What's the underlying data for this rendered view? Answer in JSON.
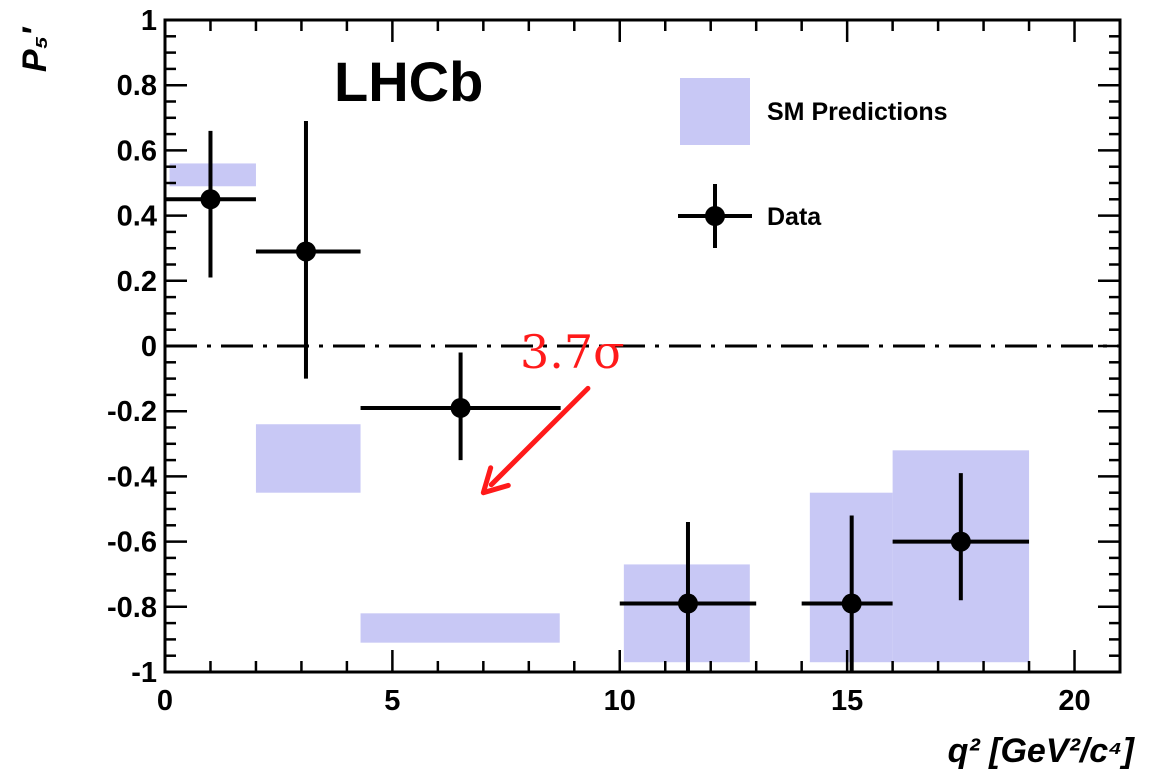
{
  "chart_data": {
    "type": "scatter",
    "title": "",
    "experiment_label": "LHCb",
    "xlabel": "q² [GeV²/c⁴]",
    "ylabel": "P₅′",
    "xlim": [
      0,
      21
    ],
    "ylim": [
      -1,
      1
    ],
    "x_ticks": [
      0,
      5,
      10,
      15,
      20
    ],
    "y_ticks": [
      -1,
      -0.8,
      -0.6,
      -0.4,
      -0.2,
      0,
      0.2,
      0.4,
      0.6,
      0.8,
      1
    ],
    "x_tick_labels": [
      "0",
      "5",
      "10",
      "15",
      "20"
    ],
    "y_tick_labels": [
      "-1",
      "-0.8",
      "-0.6",
      "-0.4",
      "-0.2",
      "0",
      "0.2",
      "0.4",
      "0.6",
      "0.8",
      "1"
    ],
    "series": [
      {
        "name": "Data",
        "points": [
          {
            "x": 1.0,
            "y": 0.45,
            "xerr_lo": 1.0,
            "xerr_hi": 1.0,
            "yerr_lo": 0.24,
            "yerr_hi": 0.21
          },
          {
            "x": 3.1,
            "y": 0.29,
            "xerr_lo": 1.1,
            "xerr_hi": 1.2,
            "yerr_lo": 0.39,
            "yerr_hi": 0.4
          },
          {
            "x": 6.5,
            "y": -0.19,
            "xerr_lo": 2.2,
            "xerr_hi": 2.2,
            "yerr_lo": 0.16,
            "yerr_hi": 0.17
          },
          {
            "x": 11.5,
            "y": -0.79,
            "xerr_lo": 1.5,
            "xerr_hi": 1.5,
            "yerr_lo": 0.21,
            "yerr_hi": 0.25
          },
          {
            "x": 15.1,
            "y": -0.79,
            "xerr_lo": 1.1,
            "xerr_hi": 0.9,
            "yerr_lo": 0.21,
            "yerr_hi": 0.27
          },
          {
            "x": 17.5,
            "y": -0.6,
            "xerr_lo": 1.5,
            "xerr_hi": 1.5,
            "yerr_lo": 0.18,
            "yerr_hi": 0.21
          }
        ]
      },
      {
        "name": "SM Predictions",
        "bands": [
          {
            "x0": 0.1,
            "x1": 2.0,
            "y0": 0.49,
            "y1": 0.56
          },
          {
            "x0": 2.0,
            "x1": 4.3,
            "y0": -0.45,
            "y1": -0.24
          },
          {
            "x0": 4.3,
            "x1": 8.68,
            "y0": -0.91,
            "y1": -0.82
          },
          {
            "x0": 10.09,
            "x1": 12.86,
            "y0": -0.97,
            "y1": -0.67
          },
          {
            "x0": 14.18,
            "x1": 16.0,
            "y0": -0.97,
            "y1": -0.45
          },
          {
            "x0": 16.0,
            "x1": 19.0,
            "y0": -0.97,
            "y1": -0.32
          }
        ]
      }
    ],
    "reference_line": {
      "y": 0,
      "style": "dash-dot"
    },
    "annotation": {
      "text": "3.7σ",
      "color": "#ff1a1a",
      "arrow_tail": [
        9.3,
        -0.13
      ],
      "arrow_head": [
        7.0,
        -0.45
      ]
    },
    "legend": [
      {
        "label": "SM Predictions",
        "kind": "band"
      },
      {
        "label": "Data",
        "kind": "marker"
      }
    ],
    "legend_position": "top-right",
    "colors": {
      "band": "#c8c8f5",
      "marker": "#000000",
      "annotation": "#ff1a1a"
    },
    "grid": false
  }
}
